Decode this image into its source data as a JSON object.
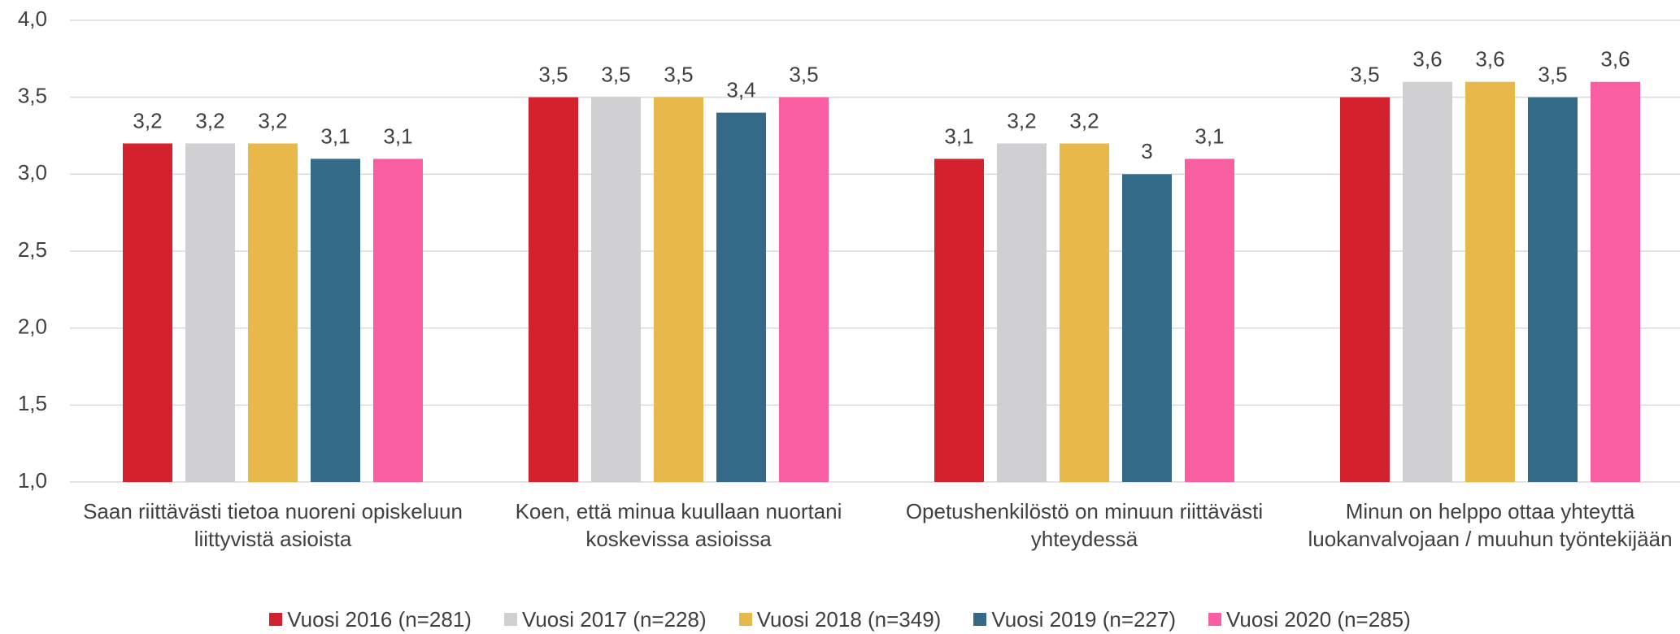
{
  "chart_data": {
    "type": "bar",
    "categories": [
      "Saan riittävästi tietoa nuoreni opiskeluun liittyvistä asioista",
      "Koen, että minua kuullaan nuortani koskevissa asioissa",
      "Opetushenkilöstö on minuun riittävästi yhteydessä",
      "Minun on helppo ottaa yhteyttä luokanvalvojaan / muuhun työntekijään"
    ],
    "series": [
      {
        "name": "Vuosi 2016 (n=281)",
        "color": "#d3222e",
        "values": [
          3.2,
          3.5,
          3.1,
          3.5
        ],
        "value_labels": [
          "3,2",
          "3,5",
          "3,1",
          "3,5"
        ]
      },
      {
        "name": "Vuosi 2017 (n=228)",
        "color": "#d0d0d2",
        "values": [
          3.2,
          3.5,
          3.2,
          3.6
        ],
        "value_labels": [
          "3,2",
          "3,5",
          "3,2",
          "3,6"
        ]
      },
      {
        "name": "Vuosi 2018 (n=349)",
        "color": "#e8b94a",
        "values": [
          3.2,
          3.5,
          3.2,
          3.6
        ],
        "value_labels": [
          "3,2",
          "3,5",
          "3,2",
          "3,6"
        ]
      },
      {
        "name": "Vuosi 2019 (n=227)",
        "color": "#336a87",
        "values": [
          3.1,
          3.4,
          3,
          3.5
        ],
        "value_labels": [
          "3,1",
          "3,4",
          "3",
          "3,5"
        ]
      },
      {
        "name": "Vuosi 2020 (n=285)",
        "color": "#f95ea1",
        "values": [
          3.1,
          3.5,
          3.1,
          3.6
        ],
        "value_labels": [
          "3,1",
          "3,5",
          "3,1",
          "3,6"
        ]
      }
    ],
    "ylim": [
      1,
      4
    ],
    "yticks": [
      {
        "value": 1,
        "label": "1,0"
      },
      {
        "value": 1.5,
        "label": "1,5"
      },
      {
        "value": 2,
        "label": "2,0"
      },
      {
        "value": 2.5,
        "label": "2,5"
      },
      {
        "value": 3,
        "label": "3,0"
      },
      {
        "value": 3.5,
        "label": "3,5"
      },
      {
        "value": 4,
        "label": "4,0"
      }
    ],
    "grid": true,
    "legend": "bottom"
  }
}
